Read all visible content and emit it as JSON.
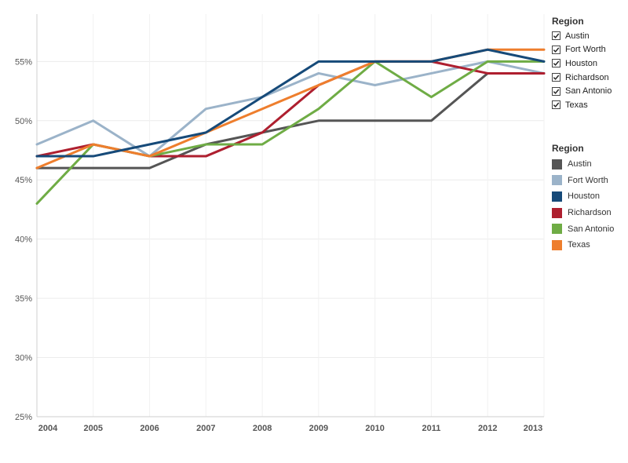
{
  "chart_data": {
    "type": "line",
    "x": [
      "2004",
      "2005",
      "2006",
      "2007",
      "2008",
      "2009",
      "2010",
      "2011",
      "2012",
      "2013"
    ],
    "ylim": [
      25,
      59
    ],
    "yticks": [
      25,
      30,
      35,
      40,
      45,
      50,
      55
    ],
    "ytick_suffix": "%",
    "grid": true,
    "series": [
      {
        "name": "Austin",
        "color": "#555555",
        "values": [
          46,
          46,
          46,
          48,
          49,
          50,
          50,
          50,
          54,
          54
        ]
      },
      {
        "name": "Fort Worth",
        "color": "#9bb3c9",
        "values": [
          48,
          50,
          47,
          51,
          52,
          54,
          53,
          54,
          55,
          54
        ]
      },
      {
        "name": "Richardson",
        "color": "#ae1f2f",
        "values": [
          47,
          48,
          47,
          47,
          49,
          53,
          55,
          55,
          54,
          54
        ]
      },
      {
        "name": "San Antonio",
        "color": "#6fac45",
        "values": [
          43,
          48,
          47,
          48,
          48,
          51,
          55,
          52,
          55,
          55
        ]
      },
      {
        "name": "Texas",
        "color": "#ee7e2d",
        "values": [
          46,
          48,
          47,
          49,
          51,
          53,
          55,
          55,
          56,
          56
        ]
      },
      {
        "name": "Houston",
        "color": "#164a79",
        "values": [
          47,
          47,
          48,
          49,
          52,
          55,
          55,
          55,
          56,
          55
        ]
      }
    ]
  },
  "filter_legend": {
    "title": "Region",
    "items": [
      "Austin",
      "Fort Worth",
      "Houston",
      "Richardson",
      "San Antonio",
      "Texas"
    ]
  },
  "color_legend": {
    "title": "Region",
    "items": [
      {
        "label": "Austin",
        "color": "#555555"
      },
      {
        "label": "Fort Worth",
        "color": "#9bb3c9"
      },
      {
        "label": "Houston",
        "color": "#164a79"
      },
      {
        "label": "Richardson",
        "color": "#ae1f2f"
      },
      {
        "label": "San Antonio",
        "color": "#6fac45"
      },
      {
        "label": "Texas",
        "color": "#ee7e2d"
      }
    ]
  }
}
